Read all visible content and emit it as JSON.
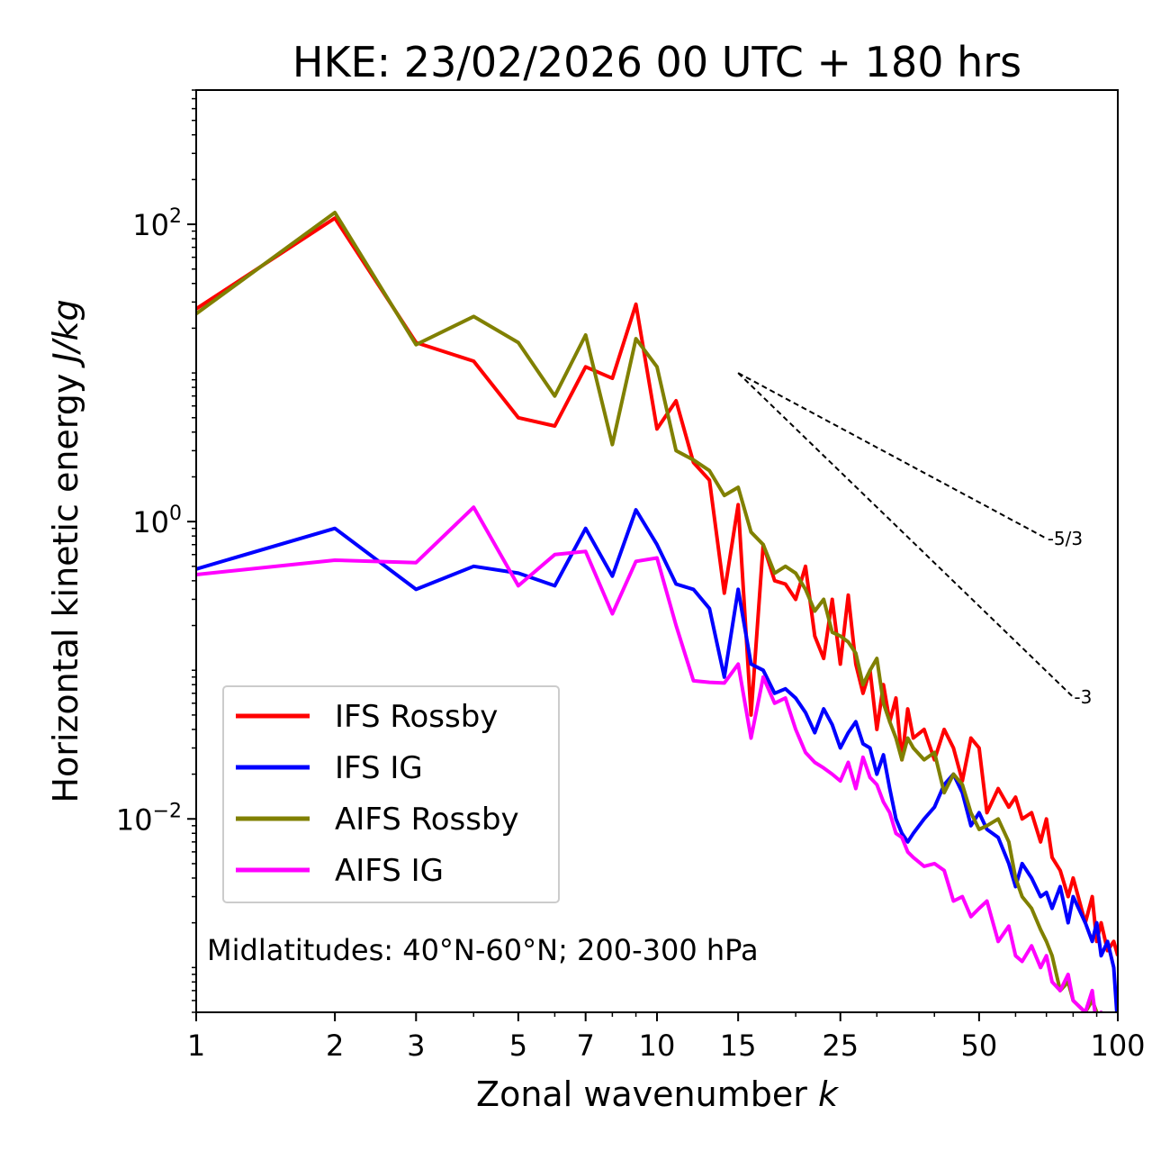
{
  "chart_data": {
    "type": "line",
    "title": "HKE: 23/02/2026 00 UTC + 180 hrs",
    "xlabel_text": "Zonal wavenumber",
    "xlabel_symbol": "k",
    "ylabel_text": "Horizontal kinetic energy",
    "ylabel_unit": "J/kg",
    "xscale": "log",
    "yscale": "log",
    "xlim": [
      1,
      100
    ],
    "ylim": [
      0.0005,
      800
    ],
    "x_ticks": [
      1,
      2,
      3,
      5,
      7,
      10,
      15,
      25,
      50,
      100
    ],
    "x_tick_labels": [
      "1",
      "2",
      "3",
      "5",
      "7",
      "10",
      "15",
      "25",
      "50",
      "100"
    ],
    "y_ticks": [
      {
        "value": 100,
        "base": "10",
        "exp": "2"
      },
      {
        "value": 1,
        "base": "10",
        "exp": "0"
      },
      {
        "value": 0.01,
        "base": "10",
        "exp": "−2"
      }
    ],
    "annotation": "Midlatitudes: 40°N-60°N; 200-300 hPa",
    "legend_position": "lower-left",
    "series": [
      {
        "name": "IFS Rossby",
        "color": "#ff0000",
        "points": [
          [
            1,
            27
          ],
          [
            2,
            110
          ],
          [
            3,
            16
          ],
          [
            4,
            12
          ],
          [
            5,
            5
          ],
          [
            6,
            4.4
          ],
          [
            7,
            11
          ],
          [
            8,
            9.2
          ],
          [
            9,
            29
          ],
          [
            10,
            4.2
          ],
          [
            11,
            6.5
          ],
          [
            12,
            2.5
          ],
          [
            13,
            1.9
          ],
          [
            14,
            0.33
          ],
          [
            15,
            1.3
          ],
          [
            16,
            0.05
          ],
          [
            17,
            0.7
          ],
          [
            18,
            0.4
          ],
          [
            19,
            0.38
          ],
          [
            20,
            0.3
          ],
          [
            21,
            0.5
          ],
          [
            22,
            0.17
          ],
          [
            23,
            0.12
          ],
          [
            24,
            0.3
          ],
          [
            25,
            0.11
          ],
          [
            26,
            0.32
          ],
          [
            27,
            0.11
          ],
          [
            28,
            0.07
          ],
          [
            29,
            0.1
          ],
          [
            30,
            0.04
          ],
          [
            31,
            0.08
          ],
          [
            32,
            0.045
          ],
          [
            33,
            0.065
          ],
          [
            34,
            0.025
          ],
          [
            35,
            0.055
          ],
          [
            36,
            0.035
          ],
          [
            38,
            0.04
          ],
          [
            40,
            0.025
          ],
          [
            42,
            0.04
          ],
          [
            44,
            0.03
          ],
          [
            46,
            0.018
          ],
          [
            48,
            0.035
          ],
          [
            50,
            0.03
          ],
          [
            52,
            0.011
          ],
          [
            55,
            0.016
          ],
          [
            58,
            0.012
          ],
          [
            60,
            0.014
          ],
          [
            62,
            0.01
          ],
          [
            65,
            0.011
          ],
          [
            68,
            0.007
          ],
          [
            70,
            0.01
          ],
          [
            72,
            0.0055
          ],
          [
            75,
            0.0045
          ],
          [
            78,
            0.003
          ],
          [
            80,
            0.004
          ],
          [
            85,
            0.002
          ],
          [
            88,
            0.003
          ],
          [
            90,
            0.0015
          ],
          [
            92,
            0.002
          ],
          [
            95,
            0.0013
          ],
          [
            98,
            0.0015
          ],
          [
            100,
            0.0012
          ]
        ]
      },
      {
        "name": "IFS IG",
        "color": "#0000ff",
        "points": [
          [
            1,
            0.48
          ],
          [
            2,
            0.9
          ],
          [
            3,
            0.35
          ],
          [
            4,
            0.5
          ],
          [
            5,
            0.45
          ],
          [
            6,
            0.37
          ],
          [
            7,
            0.9
          ],
          [
            8,
            0.43
          ],
          [
            9,
            1.2
          ],
          [
            10,
            0.7
          ],
          [
            11,
            0.38
          ],
          [
            12,
            0.35
          ],
          [
            13,
            0.26
          ],
          [
            14,
            0.09
          ],
          [
            15,
            0.35
          ],
          [
            16,
            0.11
          ],
          [
            17,
            0.1
          ],
          [
            18,
            0.07
          ],
          [
            19,
            0.075
          ],
          [
            20,
            0.065
          ],
          [
            21,
            0.052
          ],
          [
            22,
            0.038
          ],
          [
            23,
            0.055
          ],
          [
            24,
            0.043
          ],
          [
            25,
            0.03
          ],
          [
            26,
            0.038
          ],
          [
            27,
            0.045
          ],
          [
            28,
            0.032
          ],
          [
            29,
            0.03
          ],
          [
            30,
            0.02
          ],
          [
            31,
            0.027
          ],
          [
            32,
            0.016
          ],
          [
            33,
            0.01
          ],
          [
            34,
            0.008
          ],
          [
            35,
            0.007
          ],
          [
            36,
            0.008
          ],
          [
            38,
            0.01
          ],
          [
            40,
            0.012
          ],
          [
            42,
            0.017
          ],
          [
            44,
            0.02
          ],
          [
            46,
            0.015
          ],
          [
            48,
            0.009
          ],
          [
            50,
            0.011
          ],
          [
            52,
            0.0085
          ],
          [
            55,
            0.0075
          ],
          [
            58,
            0.005
          ],
          [
            60,
            0.0035
          ],
          [
            62,
            0.005
          ],
          [
            65,
            0.004
          ],
          [
            68,
            0.003
          ],
          [
            70,
            0.0032
          ],
          [
            72,
            0.0025
          ],
          [
            75,
            0.0035
          ],
          [
            78,
            0.002
          ],
          [
            80,
            0.003
          ],
          [
            85,
            0.002
          ],
          [
            88,
            0.0015
          ],
          [
            90,
            0.002
          ],
          [
            92,
            0.0012
          ],
          [
            95,
            0.0015
          ],
          [
            98,
            0.001
          ],
          [
            100,
            0.0004
          ]
        ]
      },
      {
        "name": "AIFS Rossby",
        "color": "#808000",
        "points": [
          [
            1,
            25
          ],
          [
            2,
            120
          ],
          [
            3,
            15.5
          ],
          [
            4,
            24
          ],
          [
            5,
            16
          ],
          [
            6,
            7
          ],
          [
            7,
            18
          ],
          [
            8,
            3.3
          ],
          [
            9,
            17
          ],
          [
            10,
            11
          ],
          [
            11,
            3
          ],
          [
            12,
            2.6
          ],
          [
            13,
            2.2
          ],
          [
            14,
            1.5
          ],
          [
            15,
            1.7
          ],
          [
            16,
            0.85
          ],
          [
            17,
            0.7
          ],
          [
            18,
            0.45
          ],
          [
            19,
            0.5
          ],
          [
            20,
            0.45
          ],
          [
            21,
            0.35
          ],
          [
            22,
            0.25
          ],
          [
            23,
            0.3
          ],
          [
            24,
            0.18
          ],
          [
            25,
            0.17
          ],
          [
            26,
            0.155
          ],
          [
            27,
            0.13
          ],
          [
            28,
            0.08
          ],
          [
            29,
            0.1
          ],
          [
            30,
            0.12
          ],
          [
            31,
            0.06
          ],
          [
            32,
            0.045
          ],
          [
            33,
            0.035
          ],
          [
            34,
            0.025
          ],
          [
            35,
            0.035
          ],
          [
            36,
            0.03
          ],
          [
            38,
            0.025
          ],
          [
            40,
            0.028
          ],
          [
            42,
            0.015
          ],
          [
            44,
            0.02
          ],
          [
            46,
            0.017
          ],
          [
            48,
            0.011
          ],
          [
            50,
            0.0085
          ],
          [
            52,
            0.009
          ],
          [
            55,
            0.01
          ],
          [
            58,
            0.007
          ],
          [
            60,
            0.004
          ],
          [
            62,
            0.003
          ],
          [
            65,
            0.0025
          ],
          [
            68,
            0.0018
          ],
          [
            70,
            0.0015
          ],
          [
            72,
            0.0012
          ],
          [
            75,
            0.0007
          ],
          [
            78,
            0.0008
          ],
          [
            80,
            0.0006
          ],
          [
            85,
            0.0005
          ],
          [
            88,
            0.0006
          ],
          [
            90,
            0.0005
          ],
          [
            92,
            0.00048
          ],
          [
            95,
            0.00045
          ],
          [
            98,
            0.00042
          ],
          [
            100,
            0.0004
          ]
        ]
      },
      {
        "name": "AIFS IG",
        "color": "#ff00ff",
        "points": [
          [
            1,
            0.44
          ],
          [
            2,
            0.55
          ],
          [
            3,
            0.53
          ],
          [
            4,
            1.25
          ],
          [
            5,
            0.37
          ],
          [
            6,
            0.6
          ],
          [
            7,
            0.63
          ],
          [
            8,
            0.24
          ],
          [
            9,
            0.54
          ],
          [
            10,
            0.57
          ],
          [
            11,
            0.2
          ],
          [
            12,
            0.085
          ],
          [
            13,
            0.083
          ],
          [
            14,
            0.082
          ],
          [
            15,
            0.11
          ],
          [
            16,
            0.035
          ],
          [
            17,
            0.09
          ],
          [
            18,
            0.06
          ],
          [
            19,
            0.065
          ],
          [
            20,
            0.04
          ],
          [
            21,
            0.028
          ],
          [
            22,
            0.024
          ],
          [
            23,
            0.022
          ],
          [
            24,
            0.02
          ],
          [
            25,
            0.018
          ],
          [
            26,
            0.024
          ],
          [
            27,
            0.016
          ],
          [
            28,
            0.026
          ],
          [
            29,
            0.019
          ],
          [
            30,
            0.017
          ],
          [
            31,
            0.013
          ],
          [
            32,
            0.011
          ],
          [
            33,
            0.008
          ],
          [
            34,
            0.0075
          ],
          [
            35,
            0.006
          ],
          [
            36,
            0.0055
          ],
          [
            38,
            0.0048
          ],
          [
            40,
            0.005
          ],
          [
            42,
            0.0045
          ],
          [
            44,
            0.0028
          ],
          [
            46,
            0.003
          ],
          [
            48,
            0.0022
          ],
          [
            50,
            0.0025
          ],
          [
            52,
            0.0028
          ],
          [
            55,
            0.0015
          ],
          [
            58,
            0.0019
          ],
          [
            60,
            0.0012
          ],
          [
            62,
            0.0011
          ],
          [
            65,
            0.0014
          ],
          [
            68,
            0.001
          ],
          [
            70,
            0.0012
          ],
          [
            72,
            0.0008
          ],
          [
            75,
            0.0007
          ],
          [
            78,
            0.0009
          ],
          [
            80,
            0.0006
          ],
          [
            85,
            0.0005
          ],
          [
            88,
            0.0007
          ],
          [
            90,
            0.0004
          ],
          [
            92,
            0.0005
          ],
          [
            95,
            0.0004
          ],
          [
            98,
            0.0004
          ],
          [
            100,
            0.0003
          ]
        ]
      }
    ],
    "reference_slopes": [
      {
        "label": "-5/3",
        "x0": 15,
        "y0": 10,
        "x1": 70,
        "y1": 0.77
      },
      {
        "label": "-3",
        "x0": 15,
        "y0": 10,
        "x1": 80,
        "y1": 0.066
      }
    ]
  }
}
